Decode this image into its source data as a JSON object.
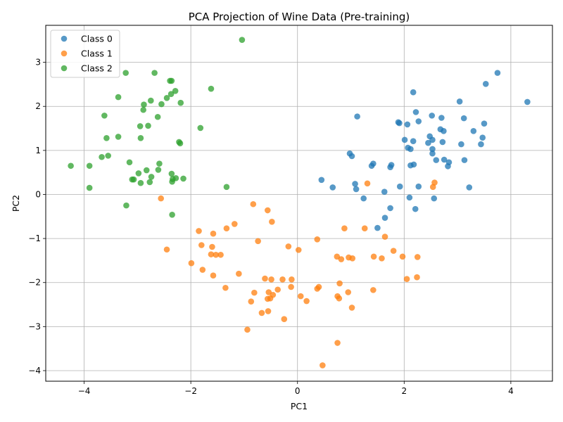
{
  "chart_data": {
    "type": "scatter",
    "title": "PCA Projection of Wine Data (Pre-training)",
    "xlabel": "PC1",
    "ylabel": "PC2",
    "xlim": [
      -4.72,
      4.78
    ],
    "ylim": [
      -4.24,
      3.84
    ],
    "xticks": [
      -4,
      -2,
      0,
      2,
      4
    ],
    "yticks": [
      -4,
      -3,
      -2,
      -1,
      0,
      1,
      2,
      3
    ],
    "grid": true,
    "legend_position": "top-left",
    "series": [
      {
        "name": "Class 0",
        "color": "#1f77b4",
        "points": [
          [
            3.75,
            2.76
          ],
          [
            3.53,
            2.51
          ],
          [
            4.31,
            2.1
          ],
          [
            2.17,
            2.32
          ],
          [
            3.04,
            2.11
          ],
          [
            2.22,
            1.87
          ],
          [
            2.27,
            1.66
          ],
          [
            2.52,
            1.79
          ],
          [
            2.7,
            1.74
          ],
          [
            3.12,
            1.73
          ],
          [
            1.12,
            1.77
          ],
          [
            1.89,
            1.64
          ],
          [
            1.91,
            1.62
          ],
          [
            2.06,
            1.59
          ],
          [
            3.5,
            1.61
          ],
          [
            2.68,
            1.48
          ],
          [
            2.74,
            1.44
          ],
          [
            3.3,
            1.44
          ],
          [
            2.48,
            1.32
          ],
          [
            3.47,
            1.29
          ],
          [
            2.01,
            1.24
          ],
          [
            2.17,
            1.21
          ],
          [
            2.45,
            1.17
          ],
          [
            2.53,
            1.24
          ],
          [
            2.72,
            1.19
          ],
          [
            3.07,
            1.14
          ],
          [
            3.44,
            1.14
          ],
          [
            2.07,
            1.06
          ],
          [
            2.12,
            1.03
          ],
          [
            2.53,
            1.03
          ],
          [
            0.98,
            0.93
          ],
          [
            1.02,
            0.87
          ],
          [
            2.53,
            0.93
          ],
          [
            2.6,
            0.78
          ],
          [
            2.75,
            0.79
          ],
          [
            2.84,
            0.73
          ],
          [
            3.13,
            0.78
          ],
          [
            1.42,
            0.7
          ],
          [
            1.39,
            0.65
          ],
          [
            1.76,
            0.67
          ],
          [
            2.18,
            0.68
          ],
          [
            1.74,
            0.62
          ],
          [
            2.12,
            0.66
          ],
          [
            2.82,
            0.64
          ],
          [
            0.45,
            0.33
          ],
          [
            0.66,
            0.16
          ],
          [
            1.08,
            0.24
          ],
          [
            1.1,
            0.12
          ],
          [
            2.27,
            0.18
          ],
          [
            1.92,
            0.18
          ],
          [
            3.22,
            0.16
          ],
          [
            1.63,
            0.06
          ],
          [
            1.24,
            -0.09
          ],
          [
            2.1,
            -0.07
          ],
          [
            2.56,
            -0.09
          ],
          [
            1.74,
            -0.31
          ],
          [
            2.21,
            -0.33
          ],
          [
            1.64,
            -0.53
          ],
          [
            1.5,
            -0.76
          ]
        ]
      },
      {
        "name": "Class 1",
        "color": "#ff7f0e",
        "points": [
          [
            -2.56,
            -0.09
          ],
          [
            -0.83,
            -0.22
          ],
          [
            -0.56,
            -0.36
          ],
          [
            -0.48,
            -0.62
          ],
          [
            -1.18,
            -0.67
          ],
          [
            -1.33,
            -0.77
          ],
          [
            -1.85,
            -0.83
          ],
          [
            -1.58,
            -0.89
          ],
          [
            -0.74,
            -1.06
          ],
          [
            -1.8,
            -1.15
          ],
          [
            -0.17,
            -1.18
          ],
          [
            -1.6,
            -1.19
          ],
          [
            -2.45,
            -1.25
          ],
          [
            0.02,
            -1.26
          ],
          [
            0.37,
            -1.02
          ],
          [
            0.88,
            -0.77
          ],
          [
            1.26,
            -0.77
          ],
          [
            1.64,
            -0.96
          ],
          [
            1.31,
            0.25
          ],
          [
            2.54,
            0.17
          ],
          [
            2.57,
            0.27
          ],
          [
            -1.62,
            -1.36
          ],
          [
            -1.53,
            -1.37
          ],
          [
            -1.44,
            -1.37
          ],
          [
            -1.99,
            -1.56
          ],
          [
            -1.78,
            -1.71
          ],
          [
            -1.1,
            -1.8
          ],
          [
            -1.58,
            -1.84
          ],
          [
            -0.61,
            -1.91
          ],
          [
            -0.49,
            -1.93
          ],
          [
            -0.28,
            -1.93
          ],
          [
            -0.11,
            -1.93
          ],
          [
            -0.37,
            -2.16
          ],
          [
            -0.54,
            -2.22
          ],
          [
            -0.81,
            -2.23
          ],
          [
            -0.46,
            -2.28
          ],
          [
            -0.56,
            -2.37
          ],
          [
            -0.51,
            -2.36
          ],
          [
            -1.35,
            -2.12
          ],
          [
            -0.12,
            -2.1
          ],
          [
            0.06,
            -2.31
          ],
          [
            0.17,
            -2.42
          ],
          [
            0.4,
            -2.1
          ],
          [
            0.37,
            -2.14
          ],
          [
            -0.87,
            -2.43
          ],
          [
            -0.55,
            -2.65
          ],
          [
            -0.67,
            -2.69
          ],
          [
            -0.25,
            -2.83
          ],
          [
            -0.94,
            -3.07
          ],
          [
            0.74,
            -1.41
          ],
          [
            0.82,
            -1.47
          ],
          [
            0.96,
            -1.43
          ],
          [
            1.03,
            -1.45
          ],
          [
            1.43,
            -1.41
          ],
          [
            1.58,
            -1.45
          ],
          [
            1.8,
            -1.28
          ],
          [
            1.97,
            -1.41
          ],
          [
            2.25,
            -1.42
          ],
          [
            0.79,
            -2.02
          ],
          [
            0.95,
            -2.22
          ],
          [
            1.42,
            -2.17
          ],
          [
            2.05,
            -1.92
          ],
          [
            2.24,
            -1.88
          ],
          [
            0.75,
            -2.31
          ],
          [
            0.78,
            -2.36
          ],
          [
            1.02,
            -2.57
          ],
          [
            0.75,
            -3.37
          ],
          [
            0.47,
            -3.88
          ]
        ]
      },
      {
        "name": "Class 2",
        "color": "#2ca02c",
        "points": [
          [
            -1.04,
            3.51
          ],
          [
            -3.22,
            2.76
          ],
          [
            -2.68,
            2.76
          ],
          [
            -2.39,
            2.58
          ],
          [
            -2.36,
            2.58
          ],
          [
            -1.62,
            2.4
          ],
          [
            -3.36,
            2.21
          ],
          [
            -2.75,
            2.13
          ],
          [
            -2.88,
            2.04
          ],
          [
            -2.55,
            2.05
          ],
          [
            -2.89,
            1.92
          ],
          [
            -2.45,
            2.19
          ],
          [
            -2.37,
            2.28
          ],
          [
            -2.29,
            2.35
          ],
          [
            -2.19,
            2.08
          ],
          [
            -3.62,
            1.79
          ],
          [
            -2.62,
            1.76
          ],
          [
            -2.95,
            1.55
          ],
          [
            -2.8,
            1.56
          ],
          [
            -1.82,
            1.51
          ],
          [
            -3.36,
            1.31
          ],
          [
            -3.58,
            1.28
          ],
          [
            -2.94,
            1.28
          ],
          [
            -2.22,
            1.19
          ],
          [
            -2.2,
            1.16
          ],
          [
            -3.15,
            0.73
          ],
          [
            -2.59,
            0.7
          ],
          [
            -3.67,
            0.85
          ],
          [
            -3.55,
            0.88
          ],
          [
            -4.25,
            0.65
          ],
          [
            -3.9,
            0.65
          ],
          [
            -2.83,
            0.55
          ],
          [
            -2.61,
            0.56
          ],
          [
            -2.98,
            0.48
          ],
          [
            -2.36,
            0.47
          ],
          [
            -2.74,
            0.4
          ],
          [
            -2.28,
            0.37
          ],
          [
            -2.34,
            0.35
          ],
          [
            -2.14,
            0.36
          ],
          [
            -3.1,
            0.34
          ],
          [
            -3.07,
            0.34
          ],
          [
            -2.94,
            0.26
          ],
          [
            -2.77,
            0.28
          ],
          [
            -2.35,
            0.29
          ],
          [
            -3.9,
            0.15
          ],
          [
            -1.33,
            0.17
          ],
          [
            -3.21,
            -0.25
          ],
          [
            -2.35,
            -0.46
          ]
        ]
      }
    ]
  }
}
